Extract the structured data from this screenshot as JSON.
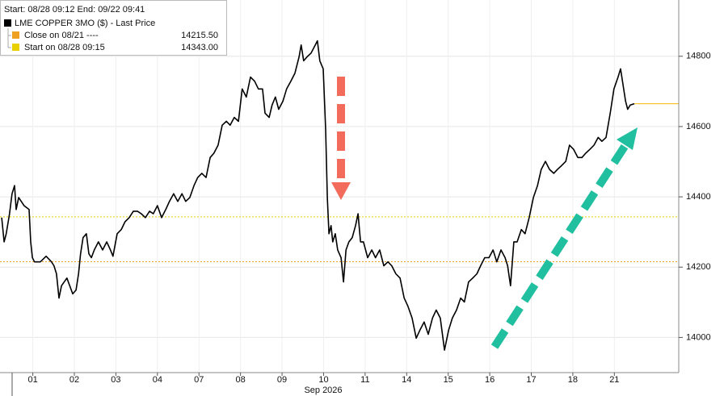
{
  "chart_data": {
    "type": "line",
    "header": "Start: 08/28 09:12 End: 09/22 09:41",
    "x": [
      -0.25,
      -0.19,
      -0.14,
      -0.06,
      0,
      0.06,
      0.1,
      0.16,
      0.29,
      0.41,
      0.45,
      0.49,
      0.54,
      0.68,
      0.82,
      0.95,
      1.01,
      1.07,
      1.13,
      1.19,
      1.32,
      1.46,
      1.54,
      1.6,
      1.65,
      1.71,
      1.79,
      1.85,
      1.91,
      1.98,
      2.08,
      2.18,
      2.28,
      2.37,
      2.43,
      2.53,
      2.63,
      2.72,
      2.82,
      2.92,
      3.02,
      3.11,
      3.21,
      3.31,
      3.4,
      3.5,
      3.6,
      3.7,
      3.79,
      3.89,
      3.99,
      4.09,
      4.18,
      4.28,
      4.38,
      4.47,
      4.57,
      4.67,
      4.77,
      4.86,
      4.96,
      5.06,
      5.16,
      5.25,
      5.35,
      5.45,
      5.54,
      5.64,
      5.74,
      5.84,
      5.93,
      6.03,
      6.09,
      6.19,
      6.26,
      6.34,
      6.42,
      6.52,
      6.61,
      6.71,
      6.81,
      6.91,
      6.96,
      7.02,
      7.1,
      7.2,
      7.3,
      7.35,
      7.41,
      7.49,
      7.55,
      7.59,
      7.63,
      7.68,
      7.72,
      7.78,
      7.84,
      7.92,
      7.98,
      8.04,
      8.11,
      8.19,
      8.27,
      8.33,
      8.39,
      8.46,
      8.56,
      8.66,
      8.75,
      8.85,
      8.95,
      9.05,
      9.14,
      9.24,
      9.34,
      9.44,
      9.53,
      9.63,
      9.73,
      9.82,
      9.92,
      10.02,
      10.12,
      10.21,
      10.31,
      10.41,
      10.51,
      10.6,
      10.7,
      10.8,
      10.89,
      10.99,
      11.09,
      11.19,
      11.28,
      11.38,
      11.48,
      11.58,
      11.67,
      11.77,
      11.87,
      11.93,
      12.0,
      12.08,
      12.16,
      12.26,
      12.35,
      12.45,
      12.55,
      12.65,
      12.74,
      12.84,
      12.94,
      13.04,
      13.13,
      13.23,
      13.33,
      13.42,
      13.52,
      13.62,
      13.72,
      13.81,
      13.91,
      14.01,
      14.11,
      14.2,
      14.3,
      14.4,
      14.49,
      14.59,
      14.65,
      14.71,
      14.77,
      14.82,
      14.88,
      14.98
    ],
    "series": [
      {
        "name": "LME COPPER 3MO ($) - Last Price",
        "color": "#000000",
        "values": [
          14341,
          14272,
          14295,
          14352,
          14409,
          14432,
          14364,
          14398,
          14375,
          14364,
          14272,
          14227,
          14215,
          14215,
          14231,
          14215,
          14204,
          14181,
          14112,
          14147,
          14169,
          14124,
          14135,
          14181,
          14238,
          14284,
          14295,
          14238,
          14227,
          14249,
          14272,
          14249,
          14272,
          14249,
          14231,
          14295,
          14307,
          14329,
          14341,
          14359,
          14359,
          14352,
          14341,
          14359,
          14352,
          14375,
          14341,
          14364,
          14387,
          14409,
          14387,
          14409,
          14387,
          14398,
          14432,
          14455,
          14467,
          14455,
          14512,
          14524,
          14547,
          14604,
          14615,
          14604,
          14626,
          14615,
          14707,
          14684,
          14741,
          14729,
          14707,
          14707,
          14638,
          14626,
          14661,
          14684,
          14649,
          14672,
          14707,
          14729,
          14752,
          14798,
          14832,
          14787,
          14798,
          14809,
          14832,
          14844,
          14787,
          14764,
          14592,
          14398,
          14295,
          14318,
          14272,
          14295,
          14249,
          14227,
          14158,
          14249,
          14272,
          14284,
          14318,
          14352,
          14272,
          14272,
          14227,
          14249,
          14227,
          14249,
          14204,
          14215,
          14204,
          14181,
          14169,
          14112,
          14089,
          14055,
          13998,
          14021,
          14044,
          14009,
          14055,
          14078,
          14055,
          13964,
          14021,
          14055,
          14078,
          14112,
          14101,
          14158,
          14169,
          14181,
          14204,
          14227,
          14227,
          14249,
          14215,
          14249,
          14227,
          14204,
          14147,
          14272,
          14272,
          14307,
          14295,
          14341,
          14398,
          14432,
          14478,
          14501,
          14478,
          14467,
          14478,
          14489,
          14501,
          14547,
          14535,
          14512,
          14512,
          14524,
          14535,
          14547,
          14569,
          14558,
          14569,
          14638,
          14707,
          14741,
          14764,
          14718,
          14672,
          14649,
          14661,
          14665
        ]
      }
    ],
    "reference_lines": [
      {
        "name": "Close on 08/21 ----",
        "value": 14215.5,
        "value_label": "14215.50",
        "color": "#f0a020"
      },
      {
        "name": "Start on 08/28 09:15",
        "value": 14343,
        "value_label": "14343.00",
        "color": "#e8d000"
      }
    ],
    "last_line_color": "#f5b800",
    "xlabel": "Sep 2026",
    "xlim": [
      -0.29,
      16.05
    ],
    "xticks": [
      {
        "value": 0.5,
        "label": "01"
      },
      {
        "value": 1.5,
        "label": "02"
      },
      {
        "value": 2.5,
        "label": "03"
      },
      {
        "value": 3.5,
        "label": "04"
      },
      {
        "value": 4.5,
        "label": "07"
      },
      {
        "value": 5.5,
        "label": "08"
      },
      {
        "value": 6.5,
        "label": "09"
      },
      {
        "value": 7.5,
        "label": "10"
      },
      {
        "value": 8.5,
        "label": "11"
      },
      {
        "value": 9.5,
        "label": "14"
      },
      {
        "value": 10.5,
        "label": "15"
      },
      {
        "value": 11.5,
        "label": "16"
      },
      {
        "value": 12.5,
        "label": "17"
      },
      {
        "value": 13.5,
        "label": "18"
      },
      {
        "value": 14.5,
        "label": "21"
      }
    ],
    "ylim": [
      13900,
      14960
    ],
    "yticks": [
      14000,
      14200,
      14400,
      14600,
      14800
    ],
    "grid": true
  }
}
